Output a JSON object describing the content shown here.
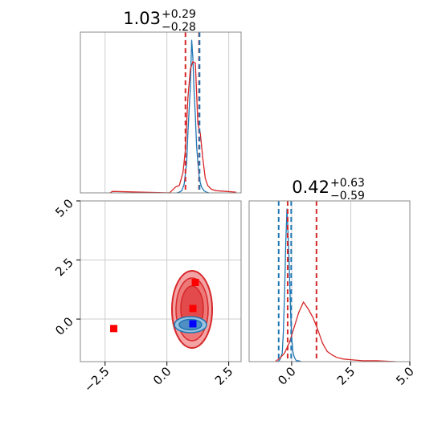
{
  "chart_data": [
    {
      "type": "line",
      "panel": "marginal-x",
      "title": {
        "value": "1.03",
        "plus": "+0.29",
        "minus": "−0.28"
      },
      "xlim": [
        -3.5,
        3.0
      ],
      "x_ticks": [
        -2.5,
        0.0,
        2.5
      ],
      "grid": true,
      "series": [
        {
          "color": "#1f77b4",
          "x": [
            0.4,
            0.5,
            0.6,
            0.7,
            0.8,
            0.85,
            0.9,
            0.95,
            1.0,
            1.05,
            1.1,
            1.15,
            1.2,
            1.25,
            1.3,
            1.35,
            1.4,
            1.5,
            1.6,
            1.7
          ],
          "y": [
            0,
            1,
            3,
            12,
            42,
            82,
            115,
            145,
            210,
            185,
            140,
            105,
            65,
            42,
            24,
            14,
            8,
            3,
            1,
            0
          ]
        },
        {
          "color": "#d62728",
          "x": [
            -2.3,
            -2.2,
            0.1,
            0.2,
            0.35,
            0.5,
            0.65,
            0.75,
            0.85,
            0.95,
            1.05,
            1.15,
            1.25,
            1.35,
            1.45,
            1.55,
            1.65,
            1.8,
            2.0,
            2.4,
            2.8
          ],
          "y": [
            0,
            2,
            0,
            3,
            8,
            10,
            28,
            60,
            130,
            170,
            180,
            178,
            95,
            82,
            48,
            20,
            10,
            5,
            3,
            2,
            1
          ]
        }
      ],
      "vlines": [
        {
          "x": 0.75,
          "color": "#d62728"
        },
        {
          "x": 1.3,
          "color": "#d62728"
        },
        {
          "x": 1.32,
          "color": "#1f77b4"
        }
      ]
    },
    {
      "type": "scatter",
      "panel": "joint",
      "xlim": [
        -3.5,
        3.0
      ],
      "ylim": [
        -1.8,
        5.0
      ],
      "x_ticks": [
        -2.5,
        0.0,
        2.5
      ],
      "y_ticks": [
        0.0,
        2.5,
        5.0
      ],
      "grid": true,
      "points": [
        {
          "x": 1.15,
          "y": 1.55,
          "color": "#ff0000"
        },
        {
          "x": 1.05,
          "y": 0.45,
          "color": "#ff0000"
        },
        {
          "x": -2.15,
          "y": -0.4,
          "color": "#ff0000"
        },
        {
          "x": 1.05,
          "y": -0.2,
          "color": "#0000ff"
        }
      ]
    },
    {
      "type": "line",
      "panel": "marginal-y",
      "title": {
        "value": "0.42",
        "plus": "+0.63",
        "minus": "−0.59"
      },
      "xlim": [
        -1.8,
        5.0
      ],
      "x_ticks": [
        0.0,
        2.5,
        5.0
      ],
      "grid": true,
      "series": [
        {
          "color": "#1f77b4",
          "x": [
            -0.6,
            -0.5,
            -0.4,
            -0.35,
            -0.3,
            -0.25,
            -0.2,
            -0.15,
            -0.1,
            -0.05,
            0.0,
            0.05,
            0.1,
            0.15,
            0.2,
            0.3,
            0.4
          ],
          "y": [
            0,
            2,
            10,
            35,
            80,
            140,
            180,
            150,
            110,
            60,
            30,
            12,
            6,
            3,
            1,
            1,
            0
          ]
        },
        {
          "color": "#d62728",
          "x": [
            -0.7,
            -0.5,
            -0.3,
            -0.1,
            0.1,
            0.3,
            0.5,
            0.7,
            0.9,
            1.1,
            1.3,
            1.5,
            1.7,
            1.9,
            2.2,
            2.6,
            3.0,
            3.6,
            4.4
          ],
          "y": [
            0,
            4,
            10,
            22,
            40,
            58,
            70,
            62,
            52,
            38,
            22,
            12,
            8,
            5,
            3,
            2,
            1,
            1,
            0
          ]
        }
      ],
      "vlines": [
        {
          "x": -0.55,
          "color": "#1f77b4"
        },
        {
          "x": -0.17,
          "color": "#d62728"
        },
        {
          "x": -0.02,
          "color": "#1f77b4"
        },
        {
          "x": 1.05,
          "color": "#d62728"
        }
      ]
    }
  ]
}
